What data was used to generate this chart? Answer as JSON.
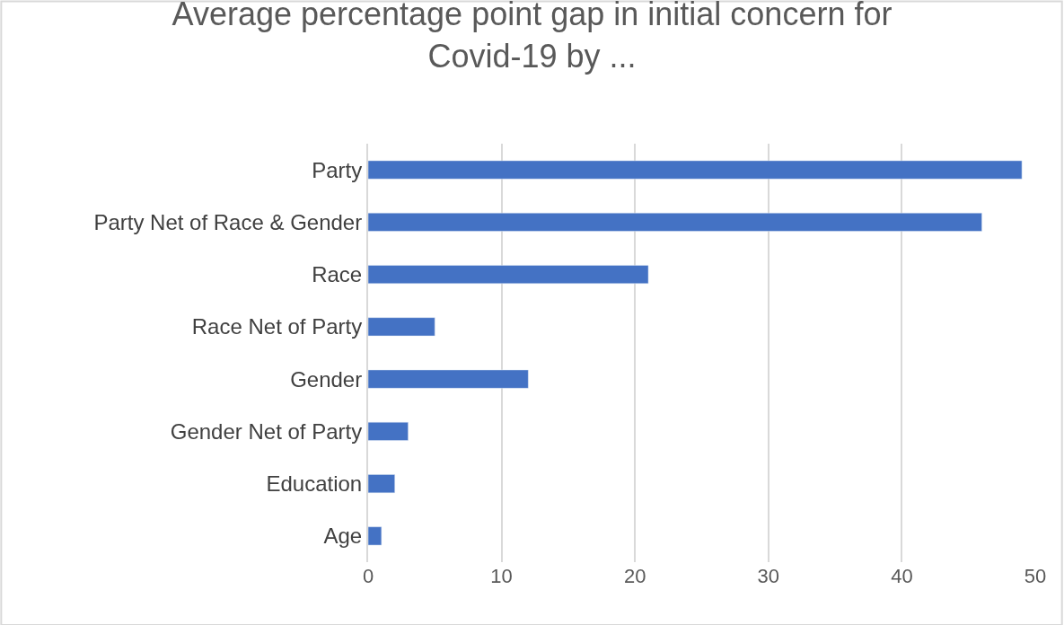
{
  "chart_data": {
    "type": "bar",
    "orientation": "horizontal",
    "title": "Average percentage point gap in initial concern for Covid-19 by ...",
    "categories": [
      "Party",
      "Party Net of Race & Gender",
      "Race",
      "Race Net of Party",
      "Gender",
      "Gender Net of Party",
      "Education",
      "Age"
    ],
    "values": [
      49,
      46,
      21,
      5,
      12,
      3,
      2,
      1
    ],
    "color": "#4472c4",
    "xlim": [
      0,
      50
    ],
    "xticks": [
      0,
      10,
      20,
      30,
      40,
      50
    ],
    "grid": "x",
    "legend": false
  }
}
